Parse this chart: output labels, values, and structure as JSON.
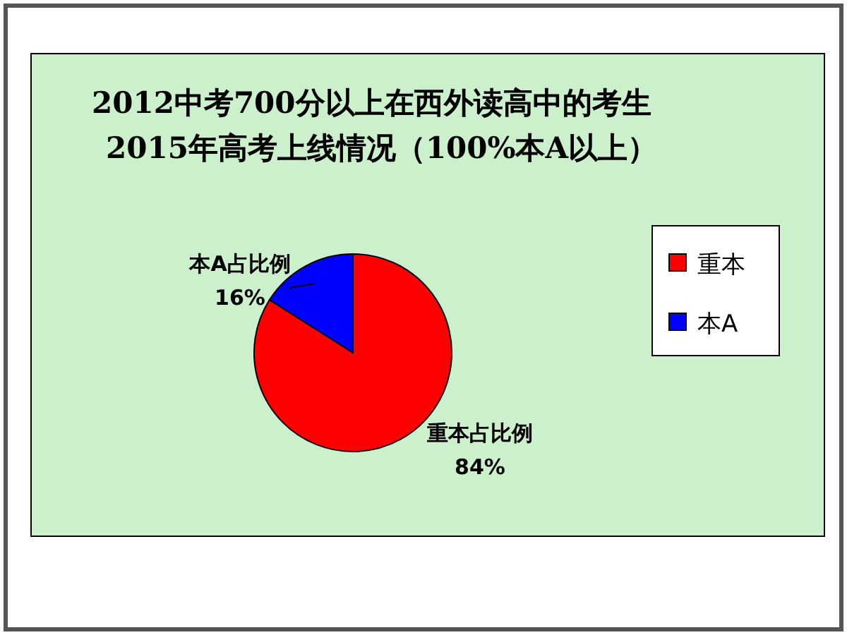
{
  "chart_data": {
    "type": "pie",
    "title": "2012中考700分以上在西外读高中的考生",
    "subtitle": "2015年高考上线情况（100%本A以上）",
    "categories": [
      "重本",
      "本A"
    ],
    "values": [
      84,
      16
    ],
    "colors": [
      "#ff0000",
      "#0000ff"
    ],
    "value_labels": [
      "重本占比例 84%",
      "本A占比例 16%"
    ],
    "legend": "right"
  }
}
